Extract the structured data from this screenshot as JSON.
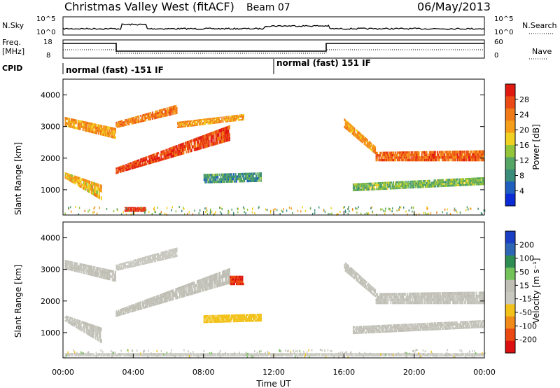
{
  "header": {
    "station": "Christmas Valley West (fitACF)",
    "beam": "Beam 07",
    "date": "06/May/2013"
  },
  "left_labels": {
    "nsky": "N.Sky",
    "freq_line1": "Freq.",
    "freq_line2": "[MHz]",
    "cpid": "CPID"
  },
  "right_labels": {
    "nsearch": "N.Search",
    "nave": "Nave"
  },
  "axis_ticks": {
    "nsky_left": [
      "10^5",
      "10^0"
    ],
    "nsearch_right": [
      "10^5",
      "10^0"
    ],
    "freq_left": [
      "18",
      "8"
    ],
    "nave_right": [
      "60",
      "0"
    ]
  },
  "cpid_segments": [
    {
      "label": "normal (fast) -151 IF",
      "start_h": 0,
      "end_h": 12
    },
    {
      "label": "normal (fast) 151 IF",
      "start_h": 12,
      "end_h": 24
    }
  ],
  "colors": {
    "power_scale": [
      "#0a2bd6",
      "#1f5fbf",
      "#3a8d7a",
      "#55a565",
      "#93c43a",
      "#f0d020",
      "#f59e1a",
      "#f07a18",
      "#ec4a14",
      "#e01a10"
    ],
    "velocity_scale": [
      "#1a3fc4",
      "#2e66b6",
      "#2e8d52",
      "#73c25a",
      "#bfbfb5",
      "#c8c8c0",
      "#f2c21a",
      "#f08a18",
      "#ea4a12",
      "#dc1010"
    ]
  },
  "chart_data": [
    {
      "type": "heatmap",
      "panel": "power",
      "ylabel": "Slant Range [km]",
      "ylim": [
        200,
        4500
      ],
      "y_ticks": [
        "4000",
        "3000",
        "2000",
        "1000"
      ],
      "colorbar_label": "Power [dB]",
      "colorbar_ticks": [
        "28",
        "24",
        "20",
        "16",
        "12",
        "8",
        "4"
      ],
      "colorbar_range": [
        0,
        30
      ],
      "bands": [
        {
          "t": [
            0.1,
            3.0
          ],
          "r": [
            [
              3000,
              3300
            ],
            [
              2600,
              2950
            ]
          ],
          "v": 20
        },
        {
          "t": [
            3.0,
            6.5
          ],
          "r": [
            [
              2950,
              3150
            ],
            [
              3400,
              3700
            ]
          ],
          "v": 22
        },
        {
          "t": [
            0.1,
            2.2
          ],
          "r": [
            [
              1350,
              1550
            ],
            [
              650,
              1150
            ]
          ],
          "v": 18
        },
        {
          "t": [
            3.0,
            9.5
          ],
          "r": [
            [
              1500,
              1700
            ],
            [
              2550,
              3050
            ]
          ],
          "v": 26
        },
        {
          "t": [
            6.5,
            10.3
          ],
          "r": [
            [
              2950,
              3150
            ],
            [
              3200,
              3400
            ]
          ],
          "v": 20
        },
        {
          "t": [
            8.0,
            11.3
          ],
          "r": [
            [
              1200,
              1500
            ],
            [
              1250,
              1550
            ]
          ],
          "v": 9
        },
        {
          "t": [
            16.0,
            17.8
          ],
          "r": [
            [
              2950,
              3250
            ],
            [
              2100,
              2350
            ]
          ],
          "v": 20
        },
        {
          "t": [
            17.8,
            24.0
          ],
          "r": [
            [
              1900,
              2200
            ],
            [
              1900,
              2250
            ]
          ],
          "v": 24
        },
        {
          "t": [
            16.5,
            24.0
          ],
          "r": [
            [
              950,
              1200
            ],
            [
              1150,
              1400
            ]
          ],
          "v": 12
        },
        {
          "t": [
            3.5,
            4.7
          ],
          "r": [
            [
              300,
              450
            ],
            [
              300,
              450
            ]
          ],
          "v": 28
        }
      ]
    },
    {
      "type": "heatmap",
      "panel": "velocity",
      "ylabel": "Slant Range [km]",
      "xlabel": "Time UT",
      "ylim": [
        200,
        4500
      ],
      "y_ticks": [
        "4000",
        "3000",
        "2000",
        "1000"
      ],
      "x_ticks": [
        "00:00",
        "04:00",
        "08:00",
        "12:00",
        "16:00",
        "20:00",
        "00:00"
      ],
      "xlim_hours": [
        0,
        24
      ],
      "colorbar_label": "Velocity [m s⁻¹]",
      "colorbar_ticks": [
        "200",
        "100",
        "50",
        "15",
        "-15",
        "-50",
        "-100",
        "-200"
      ],
      "colorbar_range": [
        -250,
        250
      ],
      "bands": [
        {
          "t": [
            0.1,
            3.0
          ],
          "r": [
            [
              3000,
              3300
            ],
            [
              2600,
              2950
            ]
          ],
          "v": 0
        },
        {
          "t": [
            3.0,
            6.5
          ],
          "r": [
            [
              2950,
              3150
            ],
            [
              3400,
              3700
            ]
          ],
          "v": -20
        },
        {
          "t": [
            0.1,
            2.2
          ],
          "r": [
            [
              1350,
              1550
            ],
            [
              650,
              1150
            ]
          ],
          "v": 0
        },
        {
          "t": [
            3.0,
            9.5
          ],
          "r": [
            [
              1500,
              1700
            ],
            [
              2550,
              3050
            ]
          ],
          "v": 5
        },
        {
          "t": [
            8.0,
            11.3
          ],
          "r": [
            [
              1300,
              1550
            ],
            [
              1350,
              1600
            ]
          ],
          "v": -60
        },
        {
          "t": [
            9.5,
            10.3
          ],
          "r": [
            [
              2500,
              2800
            ],
            [
              2500,
              2800
            ]
          ],
          "v": -200
        },
        {
          "t": [
            16.0,
            17.8
          ],
          "r": [
            [
              2950,
              3250
            ],
            [
              2100,
              2350
            ]
          ],
          "v": 0
        },
        {
          "t": [
            17.8,
            24.0
          ],
          "r": [
            [
              1900,
              2250
            ],
            [
              1900,
              2300
            ]
          ],
          "v": 0
        },
        {
          "t": [
            16.5,
            24.0
          ],
          "r": [
            [
              950,
              1200
            ],
            [
              1150,
              1400
            ]
          ],
          "v": 0
        },
        {
          "t": [
            0.1,
            24.0
          ],
          "r": [
            [
              250,
              350
            ],
            [
              250,
              350
            ]
          ],
          "v": -30
        }
      ]
    }
  ]
}
